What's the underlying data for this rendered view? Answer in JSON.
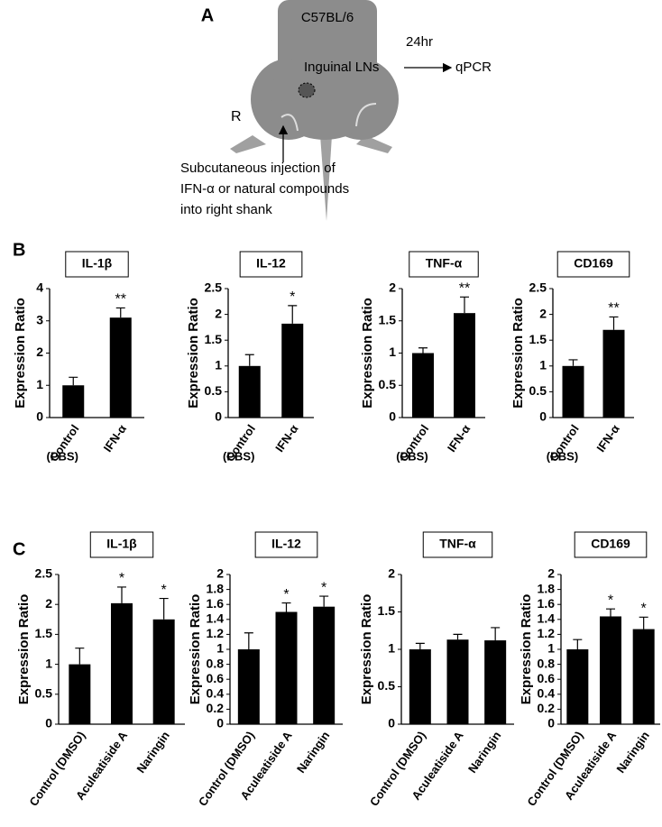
{
  "diagram": {
    "label": "A",
    "strain": "C57BL/6",
    "time": "24hr",
    "site": "Inguinal LNs",
    "assay": "qPCR",
    "side": "R",
    "injection": [
      "Subcutaneous injection of",
      "IFN-α or natural compounds",
      "into right shank"
    ]
  },
  "panel_labels": [
    "B",
    "C"
  ],
  "chart_data": [
    {
      "type": "bar",
      "title": "IL-1β",
      "y_label": "Expression Ratio",
      "categories": [
        "Control",
        "IFN-α"
      ],
      "sublabel": "(PBS)",
      "values": [
        1.0,
        3.1
      ],
      "errors": [
        0.25,
        0.3
      ],
      "annotations": [
        null,
        "**"
      ],
      "color": "#000000",
      "ylim": [
        0,
        4
      ],
      "yticks": [
        0,
        1,
        2,
        3,
        4
      ]
    },
    {
      "type": "bar",
      "title": "IL-12",
      "y_label": "Expression Ratio",
      "categories": [
        "Control",
        "IFN-α"
      ],
      "sublabel": "(PBS)",
      "values": [
        1.0,
        1.82
      ],
      "errors": [
        0.22,
        0.35
      ],
      "annotations": [
        null,
        "*"
      ],
      "color": "#000000",
      "ylim": [
        0,
        2.5
      ],
      "yticks": [
        0,
        0.5,
        1,
        1.5,
        2,
        2.5
      ]
    },
    {
      "type": "bar",
      "title": "TNF-α",
      "y_label": "Expression Ratio",
      "categories": [
        "Control",
        "IFN-α"
      ],
      "sublabel": "(PBS)",
      "values": [
        1.0,
        1.62
      ],
      "errors": [
        0.08,
        0.25
      ],
      "annotations": [
        null,
        "**"
      ],
      "color": "#000000",
      "ylim": [
        0,
        2
      ],
      "yticks": [
        0,
        0.5,
        1,
        1.5,
        2
      ]
    },
    {
      "type": "bar",
      "title": "CD169",
      "y_label": "Expression Ratio",
      "categories": [
        "Control",
        "IFN-α"
      ],
      "sublabel": "(PBS)",
      "values": [
        1.0,
        1.7
      ],
      "errors": [
        0.12,
        0.25
      ],
      "annotations": [
        null,
        "**"
      ],
      "color": "#000000",
      "ylim": [
        0,
        2.5
      ],
      "yticks": [
        0,
        0.5,
        1,
        1.5,
        2,
        2.5
      ]
    },
    {
      "type": "bar",
      "title": "IL-1β",
      "y_label": "Expression Ratio",
      "categories": [
        "Control (DMSO)",
        "Aculeatiside A",
        "Naringin"
      ],
      "values": [
        1.0,
        2.02,
        1.75
      ],
      "errors": [
        0.27,
        0.27,
        0.35
      ],
      "annotations": [
        null,
        "*",
        "*"
      ],
      "color": "#000000",
      "ylim": [
        0,
        2.5
      ],
      "yticks": [
        0,
        0.5,
        1,
        1.5,
        2,
        2.5
      ]
    },
    {
      "type": "bar",
      "title": "IL-12",
      "y_label": "Expression Ratio",
      "categories": [
        "Control (DMSO)",
        "Aculeatiside A",
        "Naringin"
      ],
      "values": [
        1.0,
        1.5,
        1.57
      ],
      "errors": [
        0.22,
        0.12,
        0.14
      ],
      "annotations": [
        null,
        "*",
        "*"
      ],
      "color": "#000000",
      "ylim": [
        0,
        2
      ],
      "yticks": [
        0,
        0.2,
        0.4,
        0.6,
        0.8,
        1,
        1.2,
        1.4,
        1.6,
        1.8,
        2
      ]
    },
    {
      "type": "bar",
      "title": "TNF-α",
      "y_label": "Expression Ratio",
      "categories": [
        "Control (DMSO)",
        "Aculeatiside A",
        "Naringin"
      ],
      "values": [
        1.0,
        1.13,
        1.12
      ],
      "errors": [
        0.08,
        0.07,
        0.17
      ],
      "color": "#000000",
      "ylim": [
        0,
        2
      ],
      "yticks": [
        0,
        0.5,
        1,
        1.5,
        2
      ]
    },
    {
      "type": "bar",
      "title": "CD169",
      "y_label": "Expression Ratio",
      "categories": [
        "Control (DMSO)",
        "Aculeatiside A",
        "Naringin"
      ],
      "values": [
        1.0,
        1.44,
        1.27
      ],
      "errors": [
        0.13,
        0.1,
        0.16
      ],
      "annotations": [
        null,
        "*",
        "*"
      ],
      "color": "#000000",
      "ylim": [
        0,
        2
      ],
      "yticks": [
        0,
        0.2,
        0.4,
        0.6,
        0.8,
        1,
        1.2,
        1.4,
        1.6,
        1.8,
        2
      ]
    }
  ]
}
